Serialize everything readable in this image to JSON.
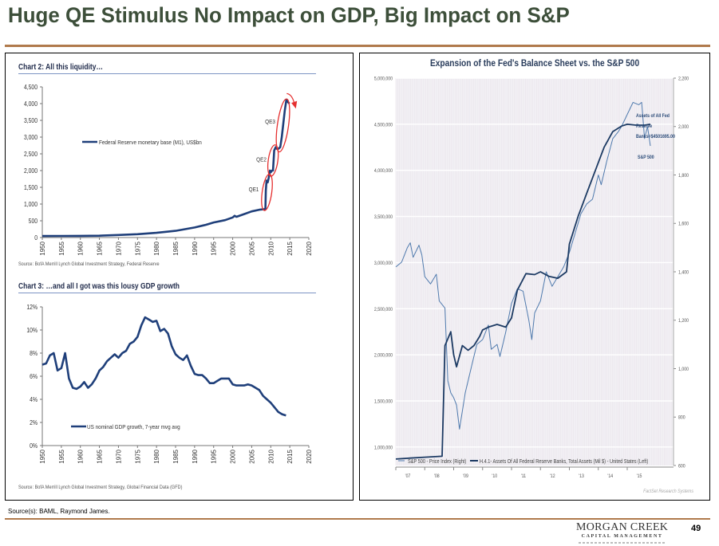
{
  "slide": {
    "title": "Huge QE Stimulus No Impact on GDP, Big Impact on S&P",
    "source": "Source(s):  BAML, Raymond James.",
    "logo": {
      "name": "MORGAN CREEK",
      "subtitle": "CAPITAL MANAGEMENT"
    },
    "page_number": "49",
    "colors": {
      "title": "#3d4f3a",
      "rule": "#b07a4c",
      "series_dark": "#1f3f7a",
      "qe_circle": "#e53030"
    }
  },
  "chart_data": [
    {
      "type": "line",
      "heading": "Chart 2: All this liquidity…",
      "title": "",
      "xlabel": "",
      "ylabel": "",
      "x_ticks": [
        "1950",
        "1955",
        "1960",
        "1965",
        "1970",
        "1975",
        "1980",
        "1985",
        "1990",
        "1995",
        "2000",
        "2005",
        "2010",
        "2015",
        "2020"
      ],
      "y_ticks": [
        "0",
        "500",
        "1,000",
        "1,500",
        "2,000",
        "2,500",
        "3,000",
        "3,500",
        "4,000",
        "4,500"
      ],
      "xlim": [
        1950,
        2020
      ],
      "ylim": [
        0,
        4500
      ],
      "legend": "center-left",
      "series": [
        {
          "name": "Federal Reserve monetary base (M1), US$bn",
          "x": [
            1950,
            1955,
            1960,
            1965,
            1970,
            1975,
            1980,
            1985,
            1990,
            1993,
            1995,
            1998,
            2000,
            2000.5,
            2001,
            2003,
            2005,
            2007,
            2008.6,
            2008.7,
            2008.9,
            2009.2,
            2009.5,
            2009.8,
            2010.0,
            2010.3,
            2010.6,
            2010.9,
            2011.3,
            2011.6,
            2012.0,
            2012.5,
            2012.9,
            2013.3,
            2013.7,
            2014.1,
            2014.5,
            2014.9
          ],
          "values": [
            45,
            48,
            50,
            55,
            75,
            100,
            140,
            200,
            300,
            380,
            450,
            520,
            600,
            650,
            620,
            700,
            780,
            830,
            850,
            1400,
            1700,
            1650,
            1800,
            2000,
            1950,
            2000,
            2000,
            2600,
            2700,
            2650,
            2650,
            2700,
            3000,
            3400,
            3800,
            4100,
            4050,
            4000
          ]
        }
      ],
      "annotations": [
        {
          "text": "QE1",
          "x": 2009.2,
          "y": 1400
        },
        {
          "text": "QE2",
          "x": 2011.0,
          "y": 2300
        },
        {
          "text": "QE3",
          "x": 2013.5,
          "y": 3400
        }
      ],
      "source": "Source: BofA Merrill Lynch Global Investment Strategy, Federal Reserve"
    },
    {
      "type": "line",
      "heading": "Chart 3: …and all I got was this lousy GDP growth",
      "title": "",
      "xlabel": "",
      "ylabel": "",
      "x_ticks": [
        "1950",
        "1955",
        "1960",
        "1965",
        "1970",
        "1975",
        "1980",
        "1985",
        "1990",
        "1995",
        "2000",
        "2005",
        "2010",
        "2015",
        "2020"
      ],
      "y_ticks": [
        "0%",
        "2%",
        "4%",
        "6%",
        "8%",
        "10%",
        "12%"
      ],
      "xlim": [
        1950,
        2020
      ],
      "ylim": [
        0,
        12
      ],
      "legend": "bottom-left",
      "series": [
        {
          "name": "US nominal GDP growth, 7-year mvg avg",
          "x": [
            1950,
            1951,
            1952,
            1953,
            1954,
            1955,
            1956,
            1957,
            1958,
            1959,
            1960,
            1961,
            1962,
            1963,
            1964,
            1965,
            1966,
            1967,
            1968,
            1969,
            1970,
            1971,
            1972,
            1973,
            1974,
            1975,
            1976,
            1977,
            1978,
            1979,
            1980,
            1981,
            1982,
            1983,
            1984,
            1985,
            1986,
            1987,
            1988,
            1989,
            1990,
            1991,
            1992,
            1993,
            1994,
            1995,
            1996,
            1997,
            1998,
            1999,
            2000,
            2001,
            2002,
            2003,
            2004,
            2005,
            2006,
            2007,
            2008,
            2009,
            2010,
            2011,
            2012,
            2013,
            2014
          ],
          "values": [
            7.0,
            7.1,
            7.8,
            8.0,
            6.5,
            6.7,
            8.0,
            5.8,
            5.0,
            4.9,
            5.1,
            5.5,
            5.0,
            5.3,
            5.8,
            6.5,
            6.8,
            7.3,
            7.6,
            7.9,
            7.6,
            8.0,
            8.2,
            8.8,
            9.0,
            9.4,
            10.4,
            11.1,
            10.9,
            10.7,
            10.8,
            9.9,
            10.1,
            9.7,
            8.6,
            7.9,
            7.6,
            7.4,
            7.8,
            6.9,
            6.2,
            6.1,
            6.1,
            5.8,
            5.4,
            5.4,
            5.6,
            5.8,
            5.8,
            5.8,
            5.3,
            5.2,
            5.2,
            5.2,
            5.3,
            5.2,
            5.0,
            4.8,
            4.3,
            4.0,
            3.7,
            3.3,
            2.9,
            2.7,
            2.6
          ]
        }
      ],
      "source": "Source: BofA Merrill Lynch Global Investment Strategy, Global Financial Data (GFD)"
    },
    {
      "type": "line",
      "title": "Expansion of the Fed's Balance Sheet vs. the S&P 500",
      "xlabel": "",
      "ylabel": "",
      "x_ticks": [
        "'07",
        "'08",
        "'09",
        "'10",
        "'11",
        "'12",
        "'13",
        "'14",
        "'15"
      ],
      "xlim": [
        2007,
        2016.6
      ],
      "y_left_ticks": [
        "1,000,000",
        "1,500,000",
        "2,000,000",
        "2,500,000",
        "3,000,000",
        "3,500,000",
        "4,000,000",
        "4,500,000",
        "5,000,000"
      ],
      "y_left_lim": [
        800000,
        5000000
      ],
      "y_right_ticks": [
        "600",
        "800",
        "1,000",
        "1,200",
        "1,400",
        "1,600",
        "1,800",
        "2,000",
        "2,200"
      ],
      "y_right_lim": [
        600,
        2200
      ],
      "grid": true,
      "legend": "bottom",
      "series": [
        {
          "name": "S&P 500 - Price Index (Right)",
          "axis": "right",
          "x": [
            2007.0,
            2007.2,
            2007.4,
            2007.5,
            2007.6,
            2007.8,
            2007.9,
            2008.0,
            2008.2,
            2008.4,
            2008.5,
            2008.7,
            2008.8,
            2008.9,
            2009.0,
            2009.1,
            2009.2,
            2009.4,
            2009.6,
            2009.8,
            2010.0,
            2010.2,
            2010.3,
            2010.5,
            2010.6,
            2010.8,
            2011.0,
            2011.2,
            2011.4,
            2011.6,
            2011.7,
            2011.8,
            2012.0,
            2012.2,
            2012.4,
            2012.6,
            2012.8,
            2013.0,
            2013.2,
            2013.4,
            2013.6,
            2013.8,
            2014.0,
            2014.1,
            2014.3,
            2014.5,
            2014.7,
            2014.8,
            2015.0,
            2015.2,
            2015.4,
            2015.5,
            2015.6,
            2015.7,
            2015.8
          ],
          "values": [
            1420,
            1440,
            1500,
            1520,
            1460,
            1510,
            1470,
            1380,
            1350,
            1390,
            1280,
            1250,
            950,
            900,
            880,
            850,
            750,
            900,
            1000,
            1100,
            1120,
            1180,
            1080,
            1100,
            1050,
            1150,
            1270,
            1330,
            1320,
            1200,
            1120,
            1230,
            1280,
            1400,
            1340,
            1380,
            1420,
            1480,
            1560,
            1640,
            1680,
            1700,
            1800,
            1760,
            1860,
            1950,
            1980,
            2000,
            2050,
            2100,
            2090,
            2100,
            1950,
            2000,
            1920
          ]
        },
        {
          "name": "H.4.1- Assets Of All Federal Reserve Banks, Total Assets (Mil $) - United States (Left)",
          "axis": "left",
          "x": [
            2007.0,
            2007.5,
            2008.0,
            2008.6,
            2008.7,
            2008.9,
            2009.0,
            2009.1,
            2009.3,
            2009.5,
            2009.7,
            2009.9,
            2010.0,
            2010.2,
            2010.5,
            2010.8,
            2011.0,
            2011.2,
            2011.5,
            2011.8,
            2012.0,
            2012.3,
            2012.6,
            2012.9,
            2013.0,
            2013.3,
            2013.6,
            2013.9,
            2014.2,
            2014.5,
            2014.8,
            2015.0,
            2015.3,
            2015.6,
            2015.8
          ],
          "values": [
            870000,
            880000,
            890000,
            900000,
            2100000,
            2250000,
            2000000,
            1870000,
            2100000,
            2050000,
            2100000,
            2200000,
            2270000,
            2300000,
            2330000,
            2300000,
            2400000,
            2700000,
            2880000,
            2870000,
            2900000,
            2850000,
            2830000,
            2900000,
            3200000,
            3500000,
            3750000,
            4000000,
            4250000,
            4420000,
            4480000,
            4500000,
            4490000,
            4490000,
            4500000
          ]
        }
      ],
      "annotations": [
        {
          "text": "Assets of All Fed Reserve Banks=$4501695.00"
        },
        {
          "text": "S&P 500"
        }
      ],
      "source": "FactSet Research Systems"
    }
  ]
}
